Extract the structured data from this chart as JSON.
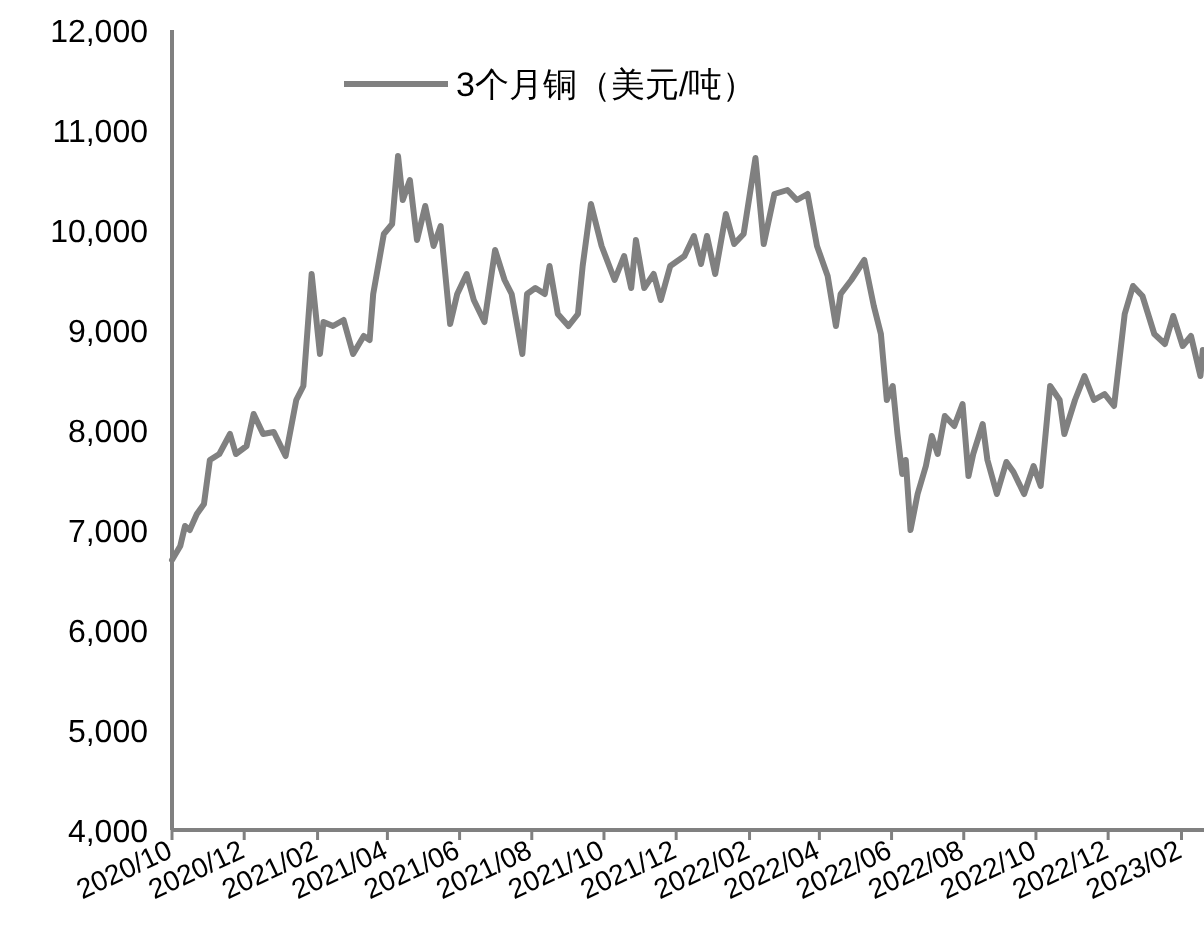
{
  "chart_data": {
    "type": "line",
    "legend": "top",
    "grid": false,
    "ylim": [
      4000,
      12000
    ],
    "yticks": [
      {
        "value": 4000,
        "label": "4,000"
      },
      {
        "value": 5000,
        "label": "5,000"
      },
      {
        "value": 6000,
        "label": "6,000"
      },
      {
        "value": 7000,
        "label": "7,000"
      },
      {
        "value": 8000,
        "label": "8,000"
      },
      {
        "value": 9000,
        "label": "9,000"
      },
      {
        "value": 10000,
        "label": "10,000"
      },
      {
        "value": 11000,
        "label": "11,000"
      },
      {
        "value": 12000,
        "label": "12,000"
      }
    ],
    "xlim": [
      "2020-10-01",
      "2023-02-20"
    ],
    "xticks": [
      {
        "value": "2020-10-01",
        "label": "2020/10"
      },
      {
        "value": "2020-12-01",
        "label": "2020/12"
      },
      {
        "value": "2021-02-01",
        "label": "2021/02"
      },
      {
        "value": "2021-04-01",
        "label": "2021/04"
      },
      {
        "value": "2021-06-01",
        "label": "2021/06"
      },
      {
        "value": "2021-08-01",
        "label": "2021/08"
      },
      {
        "value": "2021-10-01",
        "label": "2021/10"
      },
      {
        "value": "2021-12-01",
        "label": "2021/12"
      },
      {
        "value": "2022-02-01",
        "label": "2022/02"
      },
      {
        "value": "2022-04-01",
        "label": "2022/04"
      },
      {
        "value": "2022-06-01",
        "label": "2022/06"
      },
      {
        "value": "2022-08-01",
        "label": "2022/08"
      },
      {
        "value": "2022-10-01",
        "label": "2022/10"
      },
      {
        "value": "2022-12-01",
        "label": "2022/12"
      },
      {
        "value": "2023-02-01",
        "label": "2023/02"
      }
    ],
    "series": [
      {
        "name": "3个月铜（美元/吨）",
        "color": "#808080",
        "x": [
          "2020-10-01",
          "2020-10-08",
          "2020-10-12",
          "2020-10-16",
          "2020-10-22",
          "2020-10-28",
          "2020-11-02",
          "2020-11-10",
          "2020-11-19",
          "2020-11-24",
          "2020-12-03",
          "2020-12-09",
          "2020-12-17",
          "2020-12-26",
          "2021-01-05",
          "2021-01-14",
          "2021-01-20",
          "2021-01-27",
          "2021-02-03",
          "2021-02-06",
          "2021-02-14",
          "2021-02-23",
          "2021-03-03",
          "2021-03-12",
          "2021-03-17",
          "2021-03-20",
          "2021-03-29",
          "2021-04-05",
          "2021-04-10",
          "2021-04-14",
          "2021-04-20",
          "2021-04-26",
          "2021-05-03",
          "2021-05-10",
          "2021-05-16",
          "2021-05-24",
          "2021-05-30",
          "2021-06-07",
          "2021-06-13",
          "2021-06-22",
          "2021-07-01",
          "2021-07-09",
          "2021-07-15",
          "2021-07-24",
          "2021-07-28",
          "2021-08-04",
          "2021-08-12",
          "2021-08-16",
          "2021-08-23",
          "2021-09-01",
          "2021-09-09",
          "2021-09-13",
          "2021-09-20",
          "2021-09-29",
          "2021-10-10",
          "2021-10-18",
          "2021-10-24",
          "2021-10-28",
          "2021-11-04",
          "2021-11-12",
          "2021-11-18",
          "2021-11-26",
          "2021-12-08",
          "2021-12-16",
          "2021-12-22",
          "2021-12-27",
          "2022-01-03",
          "2022-01-12",
          "2022-01-19",
          "2022-01-27",
          "2022-02-06",
          "2022-02-13",
          "2022-02-22",
          "2022-03-05",
          "2022-03-13",
          "2022-03-22",
          "2022-03-30",
          "2022-04-08",
          "2022-04-15",
          "2022-04-19",
          "2022-04-28",
          "2022-05-09",
          "2022-05-17",
          "2022-05-23",
          "2022-05-28",
          "2022-06-02",
          "2022-06-06",
          "2022-06-10",
          "2022-06-13",
          "2022-06-17",
          "2022-06-23",
          "2022-06-30",
          "2022-07-05",
          "2022-07-10",
          "2022-07-16",
          "2022-07-24",
          "2022-07-31",
          "2022-08-05",
          "2022-08-09",
          "2022-08-17",
          "2022-08-21",
          "2022-08-29",
          "2022-09-06",
          "2022-09-12",
          "2022-09-21",
          "2022-09-29",
          "2022-10-05",
          "2022-10-13",
          "2022-10-21",
          "2022-10-25",
          "2022-11-03",
          "2022-11-11",
          "2022-11-19",
          "2022-11-28",
          "2022-12-06",
          "2022-12-15",
          "2022-12-22",
          "2022-12-30",
          "2023-01-09",
          "2023-01-18",
          "2023-01-25",
          "2023-02-02",
          "2023-02-09",
          "2023-02-17",
          "2023-02-19"
        ],
        "values": [
          6700,
          6840,
          7040,
          7000,
          7160,
          7260,
          7700,
          7760,
          7960,
          7760,
          7840,
          8160,
          7960,
          7980,
          7740,
          8300,
          8440,
          9560,
          8760,
          9080,
          9040,
          9100,
          8760,
          8940,
          8900,
          9360,
          9960,
          10060,
          10740,
          10300,
          10500,
          9900,
          10240,
          9840,
          10040,
          9060,
          9360,
          9560,
          9300,
          9080,
          9800,
          9500,
          9360,
          8760,
          9360,
          9420,
          9360,
          9640,
          9160,
          9040,
          9160,
          9640,
          10260,
          9840,
          9500,
          9740,
          9420,
          9900,
          9420,
          9560,
          9300,
          9640,
          9740,
          9940,
          9660,
          9940,
          9560,
          10160,
          9860,
          9960,
          10720,
          9860,
          10360,
          10400,
          10300,
          10360,
          9840,
          9540,
          9040,
          9360,
          9500,
          9700,
          9240,
          8960,
          8300,
          8440,
          7960,
          7560,
          7700,
          7000,
          7360,
          7640,
          7940,
          7760,
          8140,
          8040,
          8260,
          7540,
          7760,
          8060,
          7700,
          7360,
          7680,
          7580,
          7360,
          7640,
          7440,
          8440,
          8300,
          7960,
          8300,
          8540,
          8300,
          8360,
          8240,
          9160,
          9440,
          9340,
          8960,
          8860,
          9140,
          8840,
          8940,
          8540,
          8800
        ]
      }
    ]
  }
}
